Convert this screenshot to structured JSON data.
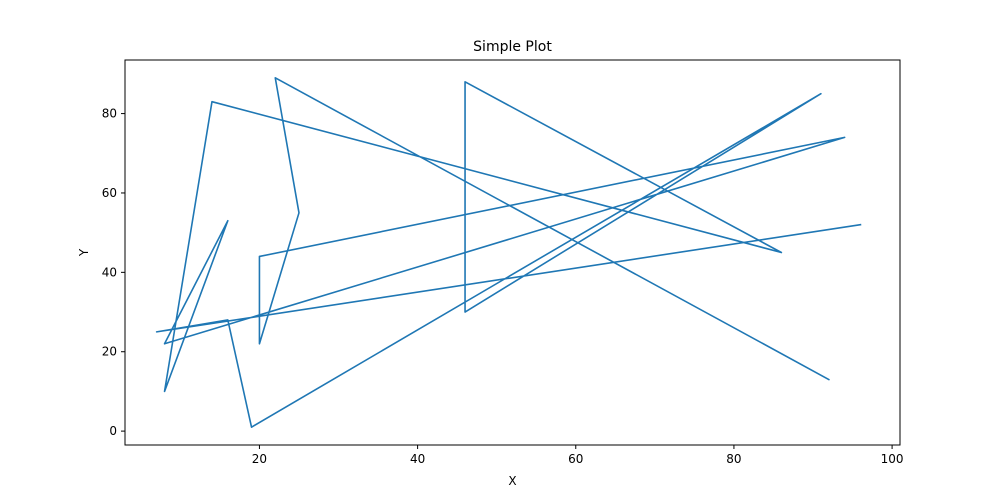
{
  "chart_data": {
    "type": "line",
    "title": "Simple Plot",
    "xlabel": "X",
    "ylabel": "Y",
    "xlim": [
      3,
      101
    ],
    "ylim": [
      -3.5,
      93.5
    ],
    "x_ticks": [
      20,
      40,
      60,
      80,
      100
    ],
    "y_ticks": [
      0,
      20,
      40,
      60,
      80
    ],
    "grid": false,
    "legend": "none",
    "color": "#1f77b4",
    "series": [
      {
        "x": [
          92,
          22,
          25,
          20,
          20,
          94,
          8,
          16,
          8,
          14,
          86,
          46,
          46,
          91,
          19,
          16,
          7,
          96
        ],
        "y": [
          13,
          89,
          55,
          22,
          44,
          74,
          22,
          53,
          10,
          83,
          45,
          88,
          30,
          85,
          1,
          28,
          25,
          52
        ]
      }
    ]
  }
}
